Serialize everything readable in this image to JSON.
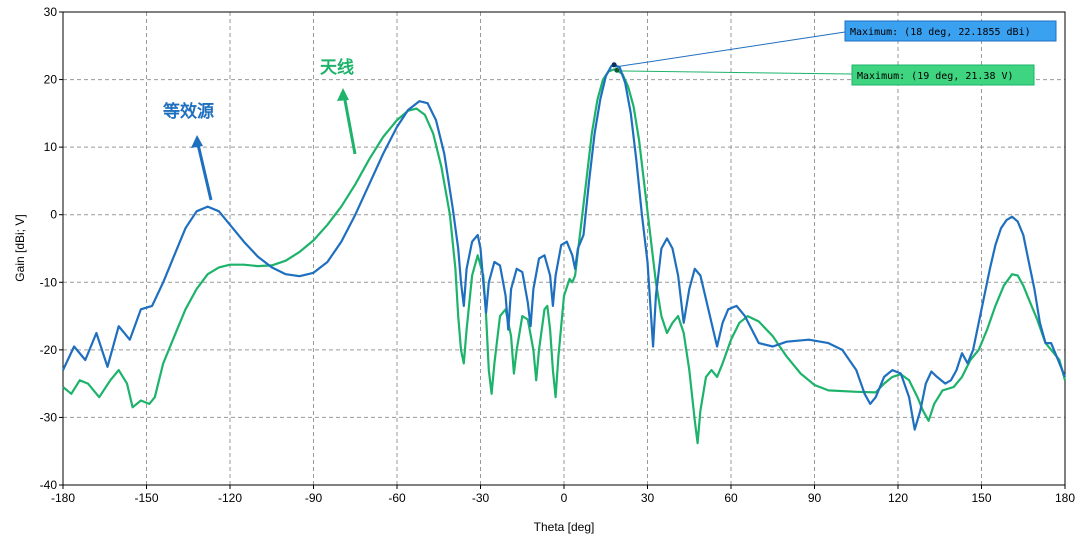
{
  "chart_data": {
    "type": "line",
    "title": "",
    "xlabel": "Theta [deg]",
    "ylabel": "Gain [dBi; V]",
    "xlim": [
      -180,
      180
    ],
    "ylim": [
      -40,
      30
    ],
    "grid": true,
    "x_ticks": [
      -180,
      -150,
      -120,
      -90,
      -60,
      -30,
      0,
      30,
      60,
      90,
      120,
      150,
      180
    ],
    "y_ticks": [
      -40,
      -30,
      -20,
      -10,
      0,
      10,
      20,
      30
    ],
    "series": [
      {
        "name": "等效源",
        "color": "#1f6fbf",
        "points": [
          [
            -180,
            -23
          ],
          [
            -176,
            -19.5
          ],
          [
            -172,
            -21.5
          ],
          [
            -168,
            -17.5
          ],
          [
            -164,
            -22.5
          ],
          [
            -160,
            -16.5
          ],
          [
            -156,
            -18.5
          ],
          [
            -152,
            -14
          ],
          [
            -148,
            -13.5
          ],
          [
            -144,
            -10
          ],
          [
            -140,
            -6
          ],
          [
            -136,
            -2
          ],
          [
            -132,
            0.5
          ],
          [
            -128,
            1.2
          ],
          [
            -124,
            0.5
          ],
          [
            -120,
            -1.5
          ],
          [
            -115,
            -4
          ],
          [
            -110,
            -6.2
          ],
          [
            -105,
            -7.8
          ],
          [
            -100,
            -8.8
          ],
          [
            -95,
            -9.1
          ],
          [
            -90,
            -8.6
          ],
          [
            -85,
            -7
          ],
          [
            -80,
            -4
          ],
          [
            -75,
            0
          ],
          [
            -70,
            4.5
          ],
          [
            -65,
            9
          ],
          [
            -60,
            13
          ],
          [
            -56,
            15.5
          ],
          [
            -52,
            16.8
          ],
          [
            -49,
            16.5
          ],
          [
            -46,
            14
          ],
          [
            -43,
            9
          ],
          [
            -40,
            1
          ],
          [
            -38,
            -5
          ],
          [
            -37,
            -10
          ],
          [
            -36,
            -13.5
          ],
          [
            -35,
            -8
          ],
          [
            -33,
            -4
          ],
          [
            -31,
            -3
          ],
          [
            -30,
            -5
          ],
          [
            -29,
            -10
          ],
          [
            -28,
            -14.5
          ],
          [
            -27,
            -10
          ],
          [
            -25,
            -7
          ],
          [
            -23,
            -7.5
          ],
          [
            -21,
            -12
          ],
          [
            -20,
            -17
          ],
          [
            -19,
            -11
          ],
          [
            -17,
            -8
          ],
          [
            -15,
            -8.5
          ],
          [
            -13,
            -13
          ],
          [
            -12,
            -16.5
          ],
          [
            -11,
            -11
          ],
          [
            -9,
            -6.5
          ],
          [
            -7,
            -6
          ],
          [
            -5,
            -9
          ],
          [
            -4,
            -13.5
          ],
          [
            -3,
            -9
          ],
          [
            -1,
            -4.5
          ],
          [
            1,
            -4
          ],
          [
            3,
            -6
          ],
          [
            4,
            -8
          ],
          [
            5,
            -5
          ],
          [
            7,
            -3
          ],
          [
            9,
            5
          ],
          [
            11,
            12
          ],
          [
            13,
            17
          ],
          [
            15,
            20.5
          ],
          [
            17,
            22
          ],
          [
            18,
            22.2
          ],
          [
            20,
            21.8
          ],
          [
            22,
            19.5
          ],
          [
            24,
            15
          ],
          [
            26,
            8
          ],
          [
            28,
            0
          ],
          [
            30,
            -7
          ],
          [
            32,
            -19.5
          ],
          [
            33,
            -12
          ],
          [
            35,
            -5
          ],
          [
            37,
            -3.5
          ],
          [
            39,
            -5
          ],
          [
            41,
            -9
          ],
          [
            43,
            -16
          ],
          [
            45,
            -11
          ],
          [
            47,
            -8
          ],
          [
            49,
            -9
          ],
          [
            51,
            -12.5
          ],
          [
            53,
            -16
          ],
          [
            55,
            -19.5
          ],
          [
            57,
            -16
          ],
          [
            59,
            -14
          ],
          [
            62,
            -13.5
          ],
          [
            65,
            -15
          ],
          [
            70,
            -19
          ],
          [
            75,
            -19.5
          ],
          [
            80,
            -18.8
          ],
          [
            88,
            -18.5
          ],
          [
            95,
            -19
          ],
          [
            100,
            -20
          ],
          [
            105,
            -23
          ],
          [
            108,
            -26.5
          ],
          [
            110,
            -28
          ],
          [
            112,
            -27
          ],
          [
            115,
            -24
          ],
          [
            118,
            -23
          ],
          [
            121,
            -23.5
          ],
          [
            124,
            -27
          ],
          [
            126,
            -31.8
          ],
          [
            128,
            -29
          ],
          [
            130,
            -25
          ],
          [
            132,
            -23.2
          ],
          [
            134,
            -24
          ],
          [
            137,
            -25
          ],
          [
            139,
            -24.5
          ],
          [
            141,
            -23
          ],
          [
            143,
            -20.5
          ],
          [
            145,
            -22
          ],
          [
            147,
            -20
          ],
          [
            149,
            -16
          ],
          [
            151,
            -12
          ],
          [
            153,
            -8
          ],
          [
            155,
            -4.5
          ],
          [
            157,
            -2
          ],
          [
            159,
            -0.8
          ],
          [
            161,
            -0.3
          ],
          [
            163,
            -1
          ],
          [
            165,
            -3
          ],
          [
            167,
            -7
          ],
          [
            169,
            -11
          ],
          [
            171,
            -16
          ],
          [
            173,
            -19
          ],
          [
            175,
            -19
          ],
          [
            177,
            -21
          ],
          [
            180,
            -24
          ]
        ]
      },
      {
        "name": "天线",
        "color": "#1db36b",
        "points": [
          [
            -180,
            -25.5
          ],
          [
            -177,
            -26.5
          ],
          [
            -174,
            -24.5
          ],
          [
            -171,
            -25
          ],
          [
            -167,
            -27
          ],
          [
            -163,
            -24.5
          ],
          [
            -160,
            -23
          ],
          [
            -157,
            -25
          ],
          [
            -155,
            -28.5
          ],
          [
            -152,
            -27.5
          ],
          [
            -149,
            -28
          ],
          [
            -147,
            -27
          ],
          [
            -144,
            -22
          ],
          [
            -140,
            -18
          ],
          [
            -136,
            -14
          ],
          [
            -132,
            -11
          ],
          [
            -128,
            -8.8
          ],
          [
            -124,
            -7.8
          ],
          [
            -120,
            -7.4
          ],
          [
            -115,
            -7.4
          ],
          [
            -110,
            -7.6
          ],
          [
            -105,
            -7.5
          ],
          [
            -100,
            -6.8
          ],
          [
            -95,
            -5.5
          ],
          [
            -90,
            -3.8
          ],
          [
            -85,
            -1.5
          ],
          [
            -80,
            1.2
          ],
          [
            -75,
            4.5
          ],
          [
            -70,
            8.2
          ],
          [
            -65,
            11.5
          ],
          [
            -60,
            14
          ],
          [
            -56,
            15.4
          ],
          [
            -53,
            15.7
          ],
          [
            -50,
            14.8
          ],
          [
            -47,
            12
          ],
          [
            -44,
            7
          ],
          [
            -41,
            0
          ],
          [
            -39,
            -8
          ],
          [
            -38,
            -15
          ],
          [
            -37,
            -20
          ],
          [
            -36,
            -22
          ],
          [
            -35,
            -17
          ],
          [
            -33,
            -9
          ],
          [
            -31,
            -6
          ],
          [
            -29,
            -9
          ],
          [
            -28,
            -15
          ],
          [
            -27,
            -23
          ],
          [
            -26,
            -26.5
          ],
          [
            -25,
            -22
          ],
          [
            -23,
            -15
          ],
          [
            -21,
            -14
          ],
          [
            -19,
            -18
          ],
          [
            -18,
            -23.5
          ],
          [
            -17,
            -20
          ],
          [
            -15,
            -15
          ],
          [
            -13,
            -15.5
          ],
          [
            -11,
            -20
          ],
          [
            -10,
            -24.5
          ],
          [
            -9,
            -20
          ],
          [
            -7,
            -14
          ],
          [
            -6,
            -13.5
          ],
          [
            -5,
            -17
          ],
          [
            -4,
            -23
          ],
          [
            -3,
            -27
          ],
          [
            -2,
            -21
          ],
          [
            0,
            -12
          ],
          [
            2,
            -9.5
          ],
          [
            3,
            -10
          ],
          [
            4,
            -9
          ],
          [
            6,
            -2
          ],
          [
            8,
            5
          ],
          [
            10,
            12
          ],
          [
            12,
            17
          ],
          [
            14,
            20
          ],
          [
            16,
            21.2
          ],
          [
            18,
            21.5
          ],
          [
            19,
            21.4
          ],
          [
            21,
            20.8
          ],
          [
            23,
            19
          ],
          [
            25,
            16
          ],
          [
            27,
            11
          ],
          [
            29,
            4
          ],
          [
            31,
            -3
          ],
          [
            33,
            -10
          ],
          [
            35,
            -15
          ],
          [
            37,
            -17.5
          ],
          [
            39,
            -16
          ],
          [
            41,
            -15
          ],
          [
            43,
            -17.5
          ],
          [
            45,
            -23
          ],
          [
            47,
            -30.5
          ],
          [
            48,
            -33.8
          ],
          [
            49,
            -29
          ],
          [
            51,
            -24
          ],
          [
            53,
            -23
          ],
          [
            55,
            -24
          ],
          [
            57,
            -22
          ],
          [
            60,
            -18.5
          ],
          [
            63,
            -16
          ],
          [
            66,
            -15
          ],
          [
            70,
            -15.8
          ],
          [
            75,
            -18
          ],
          [
            80,
            -21
          ],
          [
            85,
            -23.5
          ],
          [
            90,
            -25.2
          ],
          [
            95,
            -26
          ],
          [
            105,
            -26.2
          ],
          [
            112,
            -26.3
          ],
          [
            115,
            -25
          ],
          [
            118,
            -24
          ],
          [
            121,
            -23.6
          ],
          [
            124,
            -24.5
          ],
          [
            127,
            -27
          ],
          [
            129,
            -29
          ],
          [
            131,
            -30.5
          ],
          [
            133,
            -28
          ],
          [
            136,
            -26
          ],
          [
            140,
            -25.5
          ],
          [
            143,
            -24
          ],
          [
            146,
            -21.5
          ],
          [
            149,
            -20
          ],
          [
            152,
            -17
          ],
          [
            155,
            -13.5
          ],
          [
            158,
            -10.5
          ],
          [
            161,
            -8.8
          ],
          [
            163,
            -9
          ],
          [
            165,
            -10.5
          ],
          [
            167,
            -12.5
          ],
          [
            170,
            -15.5
          ],
          [
            173,
            -19
          ],
          [
            176,
            -20.5
          ],
          [
            178,
            -21.5
          ],
          [
            180,
            -24.5
          ]
        ]
      }
    ],
    "markers": [
      {
        "label": "Maximum: (18 deg, 22.1855 dBi)",
        "x": 18,
        "y": 22.1855,
        "series": 0
      },
      {
        "label": "Maximum: (19 deg, 21.38 V)",
        "x": 19,
        "y": 21.38,
        "series": 1
      }
    ],
    "annotations": [
      {
        "text": "等效源",
        "color": "#1f6fbf"
      },
      {
        "text": "天线",
        "color": "#1db36b"
      }
    ]
  }
}
